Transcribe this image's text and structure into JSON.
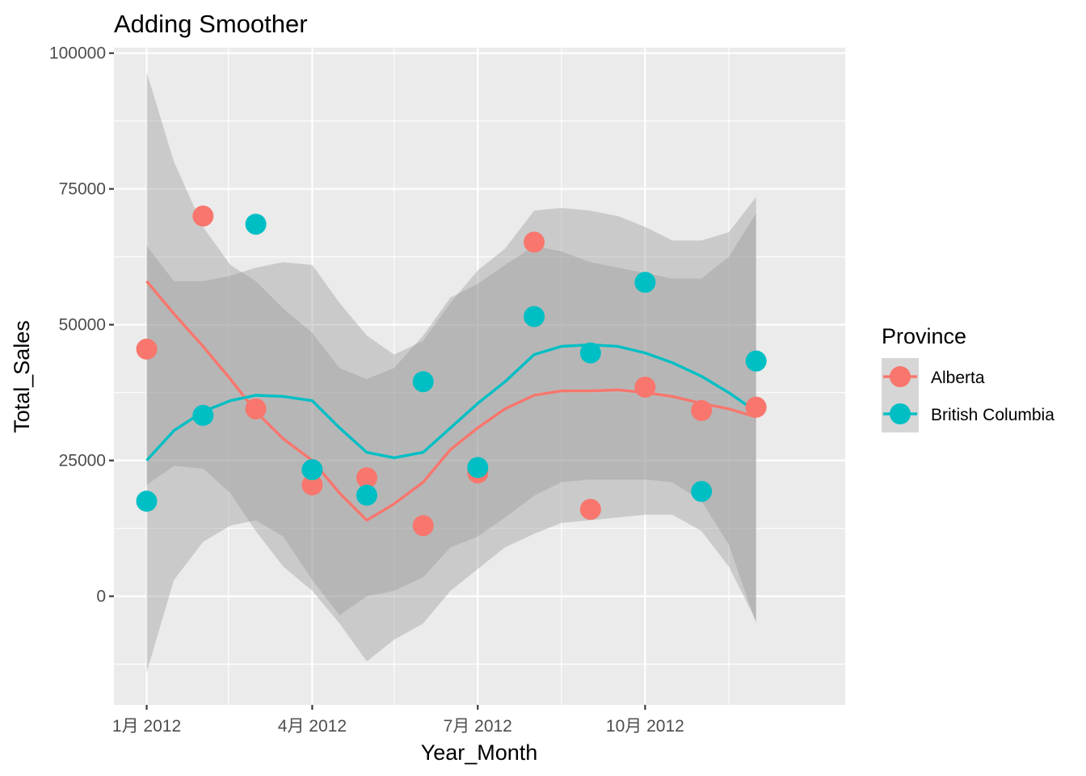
{
  "chart_data": {
    "type": "scatter",
    "title": "Adding Smoother",
    "xlabel": "Year_Month",
    "ylabel": "Total_Sales",
    "x_ticks": [
      {
        "date": "2012-01-01",
        "label": "1月 2012"
      },
      {
        "date": "2012-04-01",
        "label": "4月 2012"
      },
      {
        "date": "2012-07-01",
        "label": "7月 2012"
      },
      {
        "date": "2012-10-01",
        "label": "10月 2012"
      }
    ],
    "x_minor_ticks": [
      "2012-02-15",
      "2012-05-16",
      "2012-08-16",
      "2012-11-16"
    ],
    "xlim": [
      "2011-12-14",
      "2013-01-19"
    ],
    "ylim": [
      -20000,
      101000
    ],
    "y_ticks": [
      0,
      25000,
      50000,
      75000,
      100000
    ],
    "y_tick_labels": [
      "0",
      "25000",
      "50000",
      "75000",
      "100000"
    ],
    "y_minor_ticks": [
      -12500,
      12500,
      37500,
      62500,
      87500
    ],
    "grid": true,
    "legend": {
      "title": "Province",
      "position": "right",
      "entries": [
        "Alberta",
        "British Columbia"
      ]
    },
    "series": [
      {
        "name": "Alberta",
        "color": "#F8766D",
        "x": [
          "2012-01-01",
          "2012-02-01",
          "2012-03-01",
          "2012-04-01",
          "2012-05-01",
          "2012-06-01",
          "2012-07-01",
          "2012-08-01",
          "2012-09-01",
          "2012-10-01",
          "2012-11-01",
          "2012-12-01"
        ],
        "y": [
          45500,
          70000,
          34500,
          20500,
          21800,
          13000,
          22700,
          65200,
          16000,
          38500,
          34200,
          34800
        ],
        "smooth": {
          "x": [
            "2012-01-01",
            "2012-01-16",
            "2012-02-01",
            "2012-02-16",
            "2012-03-01",
            "2012-03-16",
            "2012-04-01",
            "2012-04-16",
            "2012-05-01",
            "2012-05-16",
            "2012-06-01",
            "2012-06-16",
            "2012-07-01",
            "2012-07-16",
            "2012-08-01",
            "2012-08-16",
            "2012-09-01",
            "2012-09-16",
            "2012-10-01",
            "2012-10-16",
            "2012-11-01",
            "2012-11-16",
            "2012-12-01"
          ],
          "fit": [
            58000,
            52000,
            46000,
            40000,
            34000,
            29000,
            25000,
            19000,
            14000,
            17000,
            21000,
            27000,
            31000,
            34500,
            37000,
            37800,
            37800,
            38000,
            37500,
            36800,
            35500,
            34500,
            33000
          ],
          "lower": [
            20500,
            24000,
            23500,
            19000,
            12000,
            5500,
            1000,
            -5000,
            -12000,
            -8000,
            -5000,
            1000,
            5000,
            9000,
            11500,
            13500,
            14000,
            14500,
            15000,
            15000,
            12000,
            5500,
            -4500
          ],
          "upper": [
            96500,
            80000,
            68000,
            61000,
            58000,
            53000,
            48500,
            42000,
            40000,
            42000,
            48000,
            55000,
            57500,
            61000,
            64500,
            63500,
            61500,
            60500,
            59500,
            58500,
            58500,
            62500,
            70500
          ]
        }
      },
      {
        "name": "British Columbia",
        "color": "#00BFC4",
        "x": [
          "2012-01-01",
          "2012-02-01",
          "2012-03-01",
          "2012-04-01",
          "2012-05-01",
          "2012-06-01",
          "2012-07-01",
          "2012-08-01",
          "2012-09-01",
          "2012-10-01",
          "2012-11-01",
          "2012-12-01"
        ],
        "y": [
          17500,
          33300,
          68500,
          23300,
          18600,
          39500,
          23700,
          51500,
          44800,
          57800,
          19300,
          43300
        ],
        "smooth": {
          "x": [
            "2012-01-01",
            "2012-01-16",
            "2012-02-01",
            "2012-02-16",
            "2012-03-01",
            "2012-03-16",
            "2012-04-01",
            "2012-04-16",
            "2012-05-01",
            "2012-05-16",
            "2012-06-01",
            "2012-06-16",
            "2012-07-01",
            "2012-07-16",
            "2012-08-01",
            "2012-08-16",
            "2012-09-01",
            "2012-09-16",
            "2012-10-01",
            "2012-10-16",
            "2012-11-01",
            "2012-11-16",
            "2012-12-01"
          ],
          "fit": [
            25000,
            30500,
            34000,
            36000,
            37000,
            36800,
            36000,
            31000,
            26500,
            25500,
            26500,
            31000,
            35500,
            39500,
            44500,
            46000,
            46300,
            46000,
            44800,
            43000,
            40500,
            37500,
            34000
          ],
          "lower": [
            -14000,
            3000,
            10000,
            13000,
            14000,
            11000,
            3000,
            -3500,
            0,
            1000,
            3500,
            9000,
            11000,
            14500,
            18500,
            21000,
            21500,
            21500,
            21500,
            21000,
            17500,
            9500,
            -5000
          ],
          "upper": [
            64500,
            58000,
            58000,
            59000,
            60500,
            61500,
            61000,
            54000,
            48000,
            44500,
            47000,
            54000,
            60000,
            64000,
            71000,
            71500,
            71000,
            70000,
            68000,
            65500,
            65500,
            67000,
            73500
          ]
        }
      }
    ]
  }
}
